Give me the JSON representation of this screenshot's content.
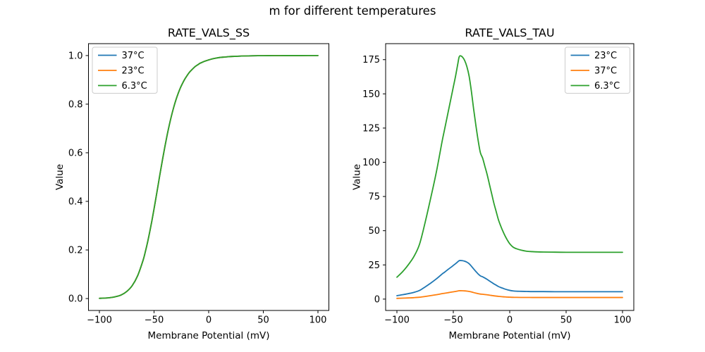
{
  "suptitle": "m for different temperatures",
  "colors": {
    "blue": "#1f77b4",
    "orange": "#ff7f0e",
    "green": "#2ca02c",
    "legend_border": "#cccccc",
    "spine": "#000000"
  },
  "chart_data": [
    {
      "type": "line",
      "title": "RATE_VALS_SS",
      "xlabel": "Membrane Potential (mV)",
      "ylabel": "Value",
      "xlim": [
        -110,
        110
      ],
      "ylim": [
        -0.049,
        1.049
      ],
      "xticks": [
        -100,
        -50,
        0,
        50,
        100
      ],
      "xtick_labels": [
        "−100",
        "−50",
        "0",
        "50",
        "100"
      ],
      "yticks": [
        0,
        0.2,
        0.4,
        0.6,
        0.8,
        1.0
      ],
      "ytick_labels": [
        "0.0",
        "0.2",
        "0.4",
        "0.6",
        "0.8",
        "1.0"
      ],
      "legend_position": "upper-left",
      "grid": false,
      "x": [
        -100,
        -95,
        -90,
        -85,
        -80,
        -75,
        -70,
        -65,
        -60,
        -58,
        -56,
        -54,
        -52,
        -50,
        -48,
        -46,
        -45,
        -44,
        -42,
        -40,
        -38,
        -36,
        -34,
        -32,
        -30,
        -28,
        -26,
        -24,
        -22,
        -20,
        -18,
        -16,
        -14,
        -12,
        -10,
        -8,
        -6,
        -4,
        -2,
        0,
        3,
        6,
        10,
        15,
        20,
        25,
        30,
        40,
        50,
        60,
        70,
        80,
        90,
        100
      ],
      "series": [
        {
          "name": "37°C",
          "color": "#1f77b4",
          "values": [
            0.001,
            0.002,
            0.004,
            0.008,
            0.015,
            0.029,
            0.053,
            0.094,
            0.158,
            0.192,
            0.23,
            0.273,
            0.319,
            0.369,
            0.421,
            0.474,
            0.501,
            0.527,
            0.578,
            0.627,
            0.673,
            0.715,
            0.753,
            0.787,
            0.817,
            0.843,
            0.866,
            0.885,
            0.902,
            0.916,
            0.929,
            0.939,
            0.948,
            0.956,
            0.962,
            0.968,
            0.972,
            0.976,
            0.979,
            0.982,
            0.986,
            0.989,
            0.992,
            0.994,
            0.996,
            0.997,
            0.998,
            0.999,
            0.9995,
            0.9997,
            0.9999,
            0.9999,
            1.0,
            1.0
          ]
        },
        {
          "name": "23°C",
          "color": "#ff7f0e",
          "values": [
            0.001,
            0.002,
            0.004,
            0.008,
            0.015,
            0.029,
            0.053,
            0.094,
            0.158,
            0.192,
            0.23,
            0.273,
            0.319,
            0.369,
            0.421,
            0.474,
            0.501,
            0.527,
            0.578,
            0.627,
            0.673,
            0.715,
            0.753,
            0.787,
            0.817,
            0.843,
            0.866,
            0.885,
            0.902,
            0.916,
            0.929,
            0.939,
            0.948,
            0.956,
            0.962,
            0.968,
            0.972,
            0.976,
            0.979,
            0.982,
            0.986,
            0.989,
            0.992,
            0.994,
            0.996,
            0.997,
            0.998,
            0.999,
            0.9995,
            0.9997,
            0.9999,
            0.9999,
            1.0,
            1.0
          ]
        },
        {
          "name": "6.3°C",
          "color": "#2ca02c",
          "values": [
            0.001,
            0.002,
            0.004,
            0.008,
            0.015,
            0.029,
            0.053,
            0.094,
            0.158,
            0.192,
            0.23,
            0.273,
            0.319,
            0.369,
            0.421,
            0.474,
            0.501,
            0.527,
            0.578,
            0.627,
            0.673,
            0.715,
            0.753,
            0.787,
            0.817,
            0.843,
            0.866,
            0.885,
            0.902,
            0.916,
            0.929,
            0.939,
            0.948,
            0.956,
            0.962,
            0.968,
            0.972,
            0.976,
            0.979,
            0.982,
            0.986,
            0.989,
            0.992,
            0.994,
            0.996,
            0.997,
            0.998,
            0.999,
            0.9995,
            0.9997,
            0.9999,
            0.9999,
            1.0,
            1.0
          ]
        }
      ]
    },
    {
      "type": "line",
      "title": "RATE_VALS_TAU",
      "xlabel": "Membrane Potential (mV)",
      "ylabel": "Value",
      "xlim": [
        -110,
        110
      ],
      "ylim": [
        -8.3,
        186.7
      ],
      "xticks": [
        -100,
        -50,
        0,
        50,
        100
      ],
      "xtick_labels": [
        "−100",
        "−50",
        "0",
        "50",
        "100"
      ],
      "yticks": [
        0,
        25,
        50,
        75,
        100,
        125,
        150,
        175
      ],
      "ytick_labels": [
        "0",
        "25",
        "50",
        "75",
        "100",
        "125",
        "150",
        "175"
      ],
      "legend_position": "upper-right",
      "grid": false,
      "x": [
        -100,
        -95,
        -90,
        -85,
        -80,
        -75,
        -70,
        -65,
        -60,
        -58,
        -56,
        -54,
        -52,
        -50,
        -48,
        -46,
        -45,
        -44,
        -42,
        -40,
        -38,
        -36,
        -34,
        -32,
        -30,
        -28,
        -26,
        -24,
        -22,
        -20,
        -18,
        -16,
        -14,
        -12,
        -10,
        -8,
        -6,
        -4,
        -2,
        0,
        3,
        6,
        10,
        15,
        20,
        25,
        30,
        40,
        50,
        60,
        70,
        80,
        90,
        100
      ],
      "series": [
        {
          "name": "23°C",
          "color": "#1f77b4",
          "values": [
            2.5,
            3.2,
            4.0,
            4.9,
            6.3,
            8.9,
            11.7,
            14.8,
            18.3,
            19.5,
            20.8,
            22.1,
            23.3,
            24.6,
            25.9,
            27.3,
            28.0,
            28.2,
            28.1,
            27.7,
            27.0,
            25.9,
            24.1,
            22.1,
            20.2,
            18.4,
            17.0,
            16.3,
            15.4,
            14.4,
            13.3,
            12.2,
            11.1,
            10.2,
            9.2,
            8.5,
            7.9,
            7.3,
            6.8,
            6.4,
            6.0,
            5.8,
            5.7,
            5.6,
            5.5,
            5.5,
            5.5,
            5.4,
            5.4,
            5.4,
            5.4,
            5.4,
            5.4,
            5.4
          ]
        },
        {
          "name": "37°C",
          "color": "#ff7f0e",
          "values": [
            0.55,
            0.69,
            0.86,
            1.07,
            1.38,
            1.93,
            2.55,
            3.21,
            3.97,
            4.24,
            4.52,
            4.79,
            5.07,
            5.34,
            5.62,
            5.93,
            6.09,
            6.13,
            6.1,
            6.02,
            5.86,
            5.62,
            5.24,
            4.79,
            4.38,
            4.0,
            3.69,
            3.55,
            3.34,
            3.14,
            2.9,
            2.66,
            2.41,
            2.21,
            2.0,
            1.84,
            1.71,
            1.59,
            1.48,
            1.4,
            1.31,
            1.27,
            1.23,
            1.21,
            1.2,
            1.19,
            1.19,
            1.18,
            1.18,
            1.18,
            1.18,
            1.18,
            1.18,
            1.18
          ]
        },
        {
          "name": "6.3°C",
          "color": "#2ca02c",
          "values": [
            16,
            20,
            25,
            31,
            40,
            56,
            74,
            93,
            115,
            123,
            131,
            139,
            147,
            155,
            163,
            172,
            176.5,
            177.8,
            177,
            174.5,
            170,
            163,
            152,
            139,
            127,
            116,
            107,
            103,
            97,
            91,
            84,
            77,
            70,
            64,
            58,
            53.5,
            49.5,
            46,
            43,
            40.5,
            38,
            36.8,
            35.8,
            35,
            34.7,
            34.5,
            34.4,
            34.3,
            34.2,
            34.2,
            34.2,
            34.2,
            34.2,
            34.2
          ]
        }
      ]
    }
  ]
}
